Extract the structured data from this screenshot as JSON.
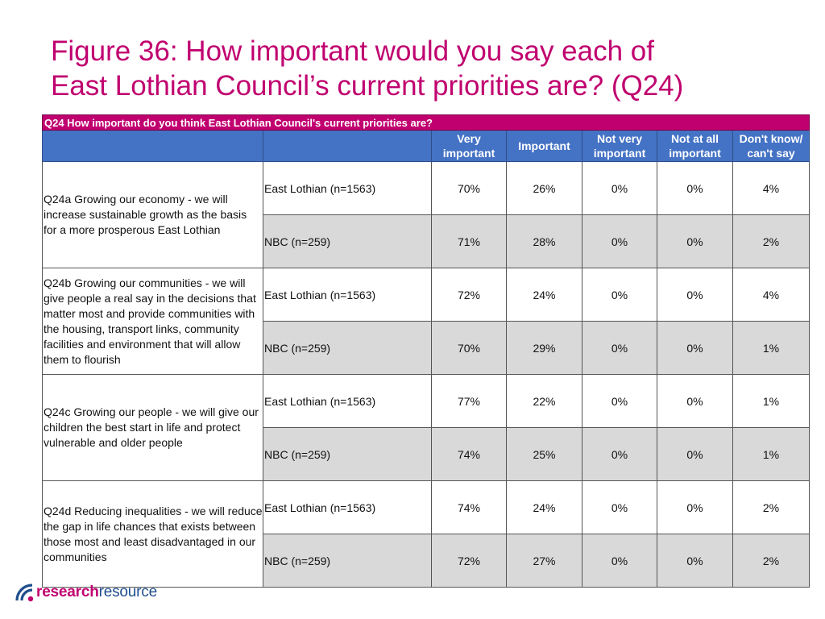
{
  "title": {
    "line1": "Figure 36: How important would you say each of",
    "line2": "East Lothian Council’s current priorities are? (Q24)"
  },
  "table": {
    "question": "Q24 How important do you think East Lothian Council's current priorities are?",
    "columns": {
      "very_important": [
        "Very",
        "important"
      ],
      "important": "Important",
      "not_very_important": [
        "Not very",
        "important"
      ],
      "not_at_all_important": [
        "Not at all",
        "important"
      ],
      "dont_know": [
        "Don't know/",
        "can't say"
      ]
    },
    "items": [
      {
        "label": "Q24a Growing our economy - we will increase sustainable growth as the basis for a more prosperous East Lothian",
        "rows": [
          {
            "group": "East Lothian (n=1563)",
            "values": [
              "70%",
              "26%",
              "0%",
              "0%",
              "4%"
            ]
          },
          {
            "group": "NBC (n=259)",
            "values": [
              "71%",
              "28%",
              "0%",
              "0%",
              "2%"
            ]
          }
        ]
      },
      {
        "label": "Q24b Growing our communities - we will give people a real say in the decisions that matter most and provide communities with the housing, transport links, community facilities and environment that will allow them to flourish",
        "rows": [
          {
            "group": "East Lothian (n=1563)",
            "values": [
              "72%",
              "24%",
              "0%",
              "0%",
              "4%"
            ]
          },
          {
            "group": "NBC (n=259)",
            "values": [
              "70%",
              "29%",
              "0%",
              "0%",
              "1%"
            ]
          }
        ]
      },
      {
        "label": "Q24c Growing our people - we will give our children the best start in life and protect vulnerable and older people",
        "rows": [
          {
            "group": "East Lothian (n=1563)",
            "values": [
              "77%",
              "22%",
              "0%",
              "0%",
              "1%"
            ]
          },
          {
            "group": "NBC (n=259)",
            "values": [
              "74%",
              "25%",
              "0%",
              "0%",
              "1%"
            ]
          }
        ]
      },
      {
        "label": "Q24d Reducing inequalities - we will reduce the gap in life chances that exists between those most and least disadvantaged in our communities",
        "rows": [
          {
            "group": "East Lothian (n=1563)",
            "values": [
              "74%",
              "24%",
              "0%",
              "0%",
              "2%"
            ]
          },
          {
            "group": "NBC (n=259)",
            "values": [
              "72%",
              "27%",
              "0%",
              "0%",
              "2%"
            ]
          }
        ]
      }
    ]
  },
  "logo": {
    "part1": "research",
    "part2": "resource"
  },
  "colors": {
    "accent": "#c0006f",
    "header": "#4472c4",
    "shade": "#d9d9d9",
    "brand_blue": "#1f4e8c"
  }
}
